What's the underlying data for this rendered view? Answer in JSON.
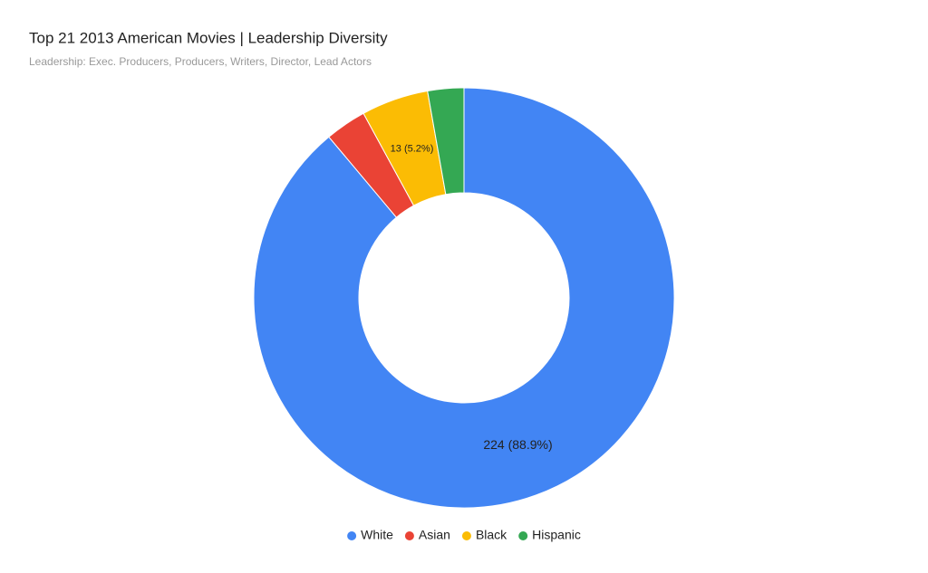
{
  "chart_data": {
    "type": "donut",
    "title": "Top 21 2013 American Movies | Leadership Diversity",
    "subtitle": "Leadership: Exec. Producers, Producers, Writers, Director, Lead Actors",
    "categories": [
      "White",
      "Asian",
      "Black",
      "Hispanic"
    ],
    "values": [
      224,
      8,
      13,
      7
    ],
    "value_labels": [
      "224 (88.9%)",
      null,
      "13 (5.2%)",
      null
    ],
    "colors": [
      "#4285f4",
      "#ea4335",
      "#fbbc04",
      "#34a853"
    ],
    "legend": "bottom"
  }
}
